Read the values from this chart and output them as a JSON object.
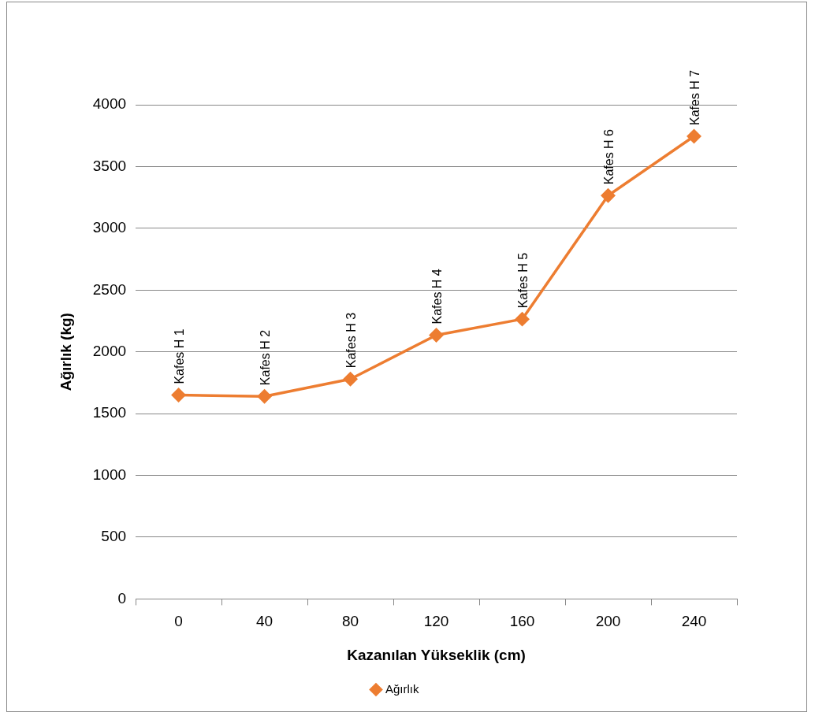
{
  "chart_data": {
    "type": "line",
    "xlabel": "Kazanılan Yükseklik (cm)",
    "ylabel": "Ağırlık (kg)",
    "categories": [
      "0",
      "40",
      "80",
      "120",
      "160",
      "200",
      "240"
    ],
    "series": [
      {
        "name": "Ağırlık",
        "color": "#ed7d31",
        "values": [
          1650,
          1640,
          1780,
          2135,
          2265,
          3265,
          3745
        ]
      }
    ],
    "ylim": [
      0,
      4000
    ],
    "yticks": [
      0,
      500,
      1000,
      1500,
      2000,
      2500,
      3000,
      3500,
      4000
    ],
    "grid": "y",
    "legend": "bottom",
    "marker": "diamond",
    "line_style": "solid",
    "annotations": [
      {
        "text": "Kafes H 1",
        "x": "0",
        "y": 1650
      },
      {
        "text": "Kafes H 2",
        "x": "40",
        "y": 1640
      },
      {
        "text": "Kafes H 3",
        "x": "80",
        "y": 1780
      },
      {
        "text": "Kafes H 4",
        "x": "120",
        "y": 2135
      },
      {
        "text": "Kafes H 5",
        "x": "160",
        "y": 2265
      },
      {
        "text": "Kafes H 6",
        "x": "200",
        "y": 3265
      },
      {
        "text": "Kafes H 7",
        "x": "240",
        "y": 3745
      }
    ]
  }
}
